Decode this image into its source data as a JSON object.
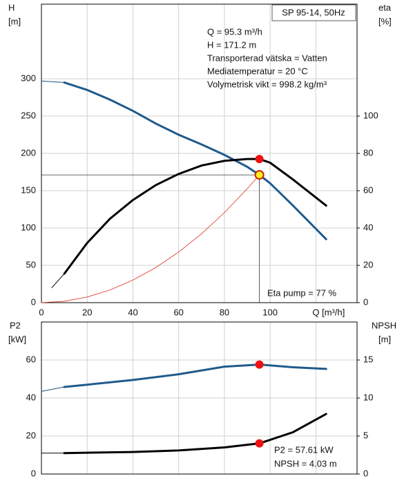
{
  "chart_data": [
    {
      "type": "line",
      "title": "SP 95-14, 50Hz",
      "ylabel": [
        "H",
        "[m]"
      ],
      "y2label": [
        "eta",
        "[%]"
      ],
      "annotations": [
        "Q = 95.3 m³/h",
        "H = 171.2 m",
        "Transporterad vätska = Vatten",
        "Mediatemperatur = 20 °C",
        "Volymetrisk vikt = 998.2 kg/m³"
      ],
      "note": "Eta pump = 77 %",
      "xlim": [
        0,
        138
      ],
      "xticks": [
        0,
        20,
        40,
        60,
        80,
        100,
        {
          "value": 120,
          "label": "Q [m³/h]"
        }
      ],
      "ylim": [
        0,
        400
      ],
      "yticks": [
        0,
        50,
        100,
        150,
        200,
        250,
        300
      ],
      "y2lim": [
        0,
        160
      ],
      "y2ticks": [
        0,
        20,
        40,
        60,
        80,
        100
      ],
      "grid": true,
      "series": [
        {
          "x": [
            0,
            10
          ],
          "values": [
            297,
            295
          ],
          "axis": "y",
          "color": "#1f4e79",
          "width": 1
        },
        {
          "x": [
            10,
            20,
            30,
            40,
            50,
            60,
            70,
            80,
            90,
            95.3,
            100,
            110,
            124.5
          ],
          "values": [
            295,
            285,
            272,
            257,
            240,
            225,
            212,
            198,
            182,
            171.2,
            160,
            130,
            85
          ],
          "axis": "y",
          "color": "#1f5a8c",
          "width": 3
        },
        {
          "x": [
            4.5,
            10
          ],
          "values": [
            8,
            15.5
          ],
          "axis": "y2",
          "color": "#000000",
          "width": 1
        },
        {
          "x": [
            10,
            20,
            30,
            40,
            50,
            60,
            70,
            80,
            90,
            95.3,
            100,
            110,
            124.5
          ],
          "values": [
            15.5,
            32,
            45,
            55,
            63,
            69,
            73.5,
            76,
            77,
            77,
            75,
            66,
            52
          ],
          "axis": "y2",
          "color": "#000000",
          "width": 3
        },
        {
          "x": [
            0,
            10,
            20,
            30,
            40,
            50,
            60,
            70,
            80,
            90,
            95.3
          ],
          "values": [
            0,
            1.9,
            7.5,
            17,
            30.2,
            47.1,
            67.8,
            92.3,
            120.6,
            152.7,
            171.2
          ],
          "axis": "y",
          "color": "#e03020",
          "width": 0.8
        }
      ],
      "crosshair": {
        "x": 95.3,
        "y": 171.2
      },
      "markers": [
        {
          "x": 95.3,
          "y": 77,
          "axis": "y2",
          "color": "#ee1111"
        },
        {
          "x": 95.3,
          "y": 171.2,
          "axis": "y",
          "color": "#ffee22"
        }
      ]
    },
    {
      "type": "line",
      "ylabel": [
        "P2",
        "[kW]"
      ],
      "y2label": [
        "NPSH",
        "[m]"
      ],
      "annotations": [
        "P2 = 57.61 kW",
        "NPSH = 4.03 m"
      ],
      "xlim": [
        0,
        138
      ],
      "xgrid": [
        0,
        20,
        40,
        60,
        80,
        100,
        120
      ],
      "ylim": [
        0,
        80
      ],
      "yticks": [
        0,
        20,
        40,
        60
      ],
      "y2lim": [
        0,
        20
      ],
      "y2ticks": [
        0,
        5,
        10,
        15
      ],
      "grid": true,
      "series": [
        {
          "x": [
            0,
            10
          ],
          "values": [
            43.5,
            45.8
          ],
          "axis": "y",
          "color": "#1f4e79",
          "width": 1
        },
        {
          "x": [
            10,
            20,
            40,
            60,
            80,
            95.3,
            110,
            124.5
          ],
          "values": [
            45.8,
            47,
            49.5,
            52.5,
            56.5,
            57.61,
            56.2,
            55.3
          ],
          "axis": "y",
          "color": "#1f5a8c",
          "width": 3
        },
        {
          "x": [
            0,
            10
          ],
          "values": [
            2.75,
            2.75
          ],
          "axis": "y2",
          "color": "#000000",
          "width": 1
        },
        {
          "x": [
            10,
            40,
            60,
            80,
            95.3,
            110,
            124.5
          ],
          "values": [
            2.75,
            2.9,
            3.1,
            3.5,
            4.03,
            5.5,
            7.9
          ],
          "axis": "y2",
          "color": "#000000",
          "width": 3
        }
      ],
      "markers": [
        {
          "x": 95.3,
          "y": 57.61,
          "axis": "y",
          "color": "#ee1111"
        },
        {
          "x": 95.3,
          "y": 4.03,
          "axis": "y2",
          "color": "#ee1111"
        }
      ]
    }
  ]
}
